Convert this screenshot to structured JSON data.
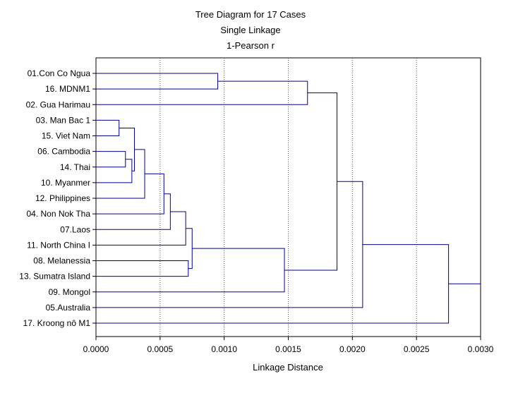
{
  "chart_data": {
    "type": "dendrogram",
    "title": [
      "Tree Diagram for 17 Cases",
      "Single Linkage",
      "1-Pearson r"
    ],
    "xlabel": "Linkage Distance",
    "xlim": [
      0,
      0.003
    ],
    "xticks": [
      "0.0000",
      "0.0005",
      "0.0010",
      "0.0015",
      "0.0020",
      "0.0025",
      "0.0030"
    ],
    "xtick_values": [
      0,
      0.0005,
      0.001,
      0.0015,
      0.002,
      0.0025,
      0.003
    ],
    "grid": true,
    "line_color": "#00008b",
    "leaves": [
      "01.Con Co Ngua",
      "16. MDNM1",
      "02. Gua Harimau",
      "03. Man Bac 1",
      "15. Viet Nam",
      "06. Cambodia",
      "14. Thai",
      "10. Myanmer",
      "12. Philippines",
      "04. Non Nok Tha",
      "07.Laos",
      "11. North China I",
      "08. Melanessia",
      "13. Sumatra Island",
      "09. Mongol",
      "05.Australia",
      "17. Kroong nô M1"
    ],
    "merges": [
      {
        "id": "m1",
        "a": 3,
        "b": 4,
        "distance": 0.00018
      },
      {
        "id": "m2",
        "a": 5,
        "b": 6,
        "distance": 0.00023
      },
      {
        "id": "m3",
        "a": "m2",
        "b": 7,
        "distance": 0.00028
      },
      {
        "id": "m4",
        "a": "m1",
        "b": "m3",
        "distance": 0.0003
      },
      {
        "id": "m5",
        "a": "m4",
        "b": 8,
        "distance": 0.00038
      },
      {
        "id": "m6",
        "a": "m5",
        "b": 9,
        "distance": 0.00053
      },
      {
        "id": "m7",
        "a": "m6",
        "b": 10,
        "distance": 0.00058
      },
      {
        "id": "m8",
        "a": "m7",
        "b": 11,
        "distance": 0.0007
      },
      {
        "id": "m9",
        "a": 12,
        "b": 13,
        "distance": 0.00072
      },
      {
        "id": "m10",
        "a": "m8",
        "b": "m9",
        "distance": 0.00075
      },
      {
        "id": "m11",
        "a": 0,
        "b": 1,
        "distance": 0.00095
      },
      {
        "id": "m12",
        "a": "m10",
        "b": 14,
        "distance": 0.00147
      },
      {
        "id": "m13",
        "a": "m11",
        "b": 2,
        "distance": 0.00165
      },
      {
        "id": "m14",
        "a": "m13",
        "b": "m12",
        "distance": 0.00188
      },
      {
        "id": "m15",
        "a": "m14",
        "b": 15,
        "distance": 0.00208
      },
      {
        "id": "m16",
        "a": "m15",
        "b": 16,
        "distance": 0.00275
      }
    ]
  }
}
